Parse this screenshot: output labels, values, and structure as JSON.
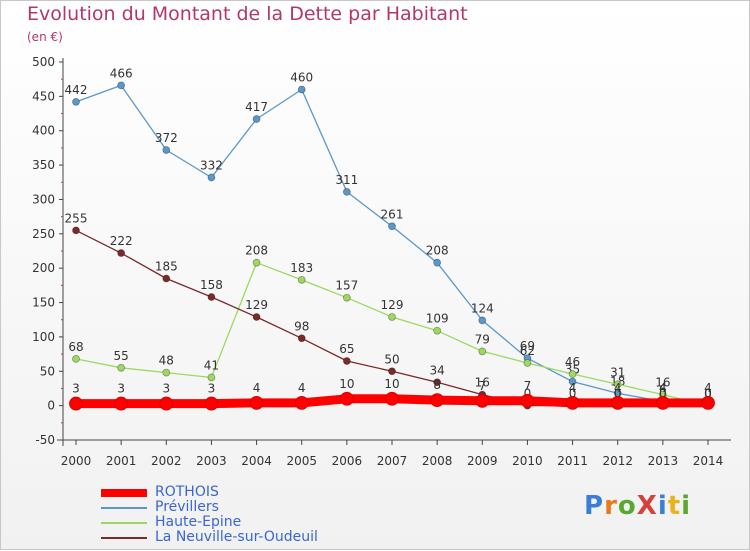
{
  "title": "Evolution du Montant de la Dette par Habitant",
  "subtitle": "(en €)",
  "logo": {
    "text": "ProXiti"
  },
  "chart_data": {
    "type": "line",
    "title": "Evolution du Montant de la Dette par Habitant",
    "ylabel": "(en €)",
    "x": [
      2000,
      2001,
      2002,
      2003,
      2004,
      2005,
      2006,
      2007,
      2008,
      2009,
      2010,
      2011,
      2012,
      2013,
      2014
    ],
    "ylim": [
      -50,
      500
    ],
    "yticks": [
      -50,
      0,
      50,
      100,
      150,
      200,
      250,
      300,
      350,
      400,
      450,
      500
    ],
    "grid": false,
    "legend_position": "bottom-left",
    "series": [
      {
        "name": "Prévillers",
        "color": "#5a98c9",
        "values": [
          442,
          466,
          372,
          332,
          417,
          460,
          311,
          261,
          208,
          124,
          69,
          35,
          18,
          6,
          0
        ],
        "labels": [
          "442",
          "466",
          "372",
          "332",
          "417",
          "460",
          "311",
          "261",
          "208",
          "124",
          "69",
          "35",
          "18",
          "6",
          "0"
        ]
      },
      {
        "name": "Haute-Epine",
        "color": "#9ed85e",
        "values": [
          68,
          55,
          48,
          41,
          208,
          183,
          157,
          129,
          109,
          79,
          62,
          46,
          31,
          16,
          0
        ],
        "labels": [
          "68",
          "55",
          "48",
          "41",
          "208",
          "183",
          "157",
          "129",
          "109",
          "79",
          "62",
          "46",
          "31",
          "16",
          "0"
        ]
      },
      {
        "name": "La Neuville-sur-Oudeuil",
        "color": "#7b2a2a",
        "values": [
          255,
          222,
          185,
          158,
          129,
          98,
          65,
          50,
          34,
          16,
          0,
          0,
          0,
          0,
          0
        ],
        "labels": [
          "255",
          "222",
          "185",
          "158",
          "129",
          "98",
          "65",
          "50",
          "34",
          "16",
          "0",
          "0",
          "0",
          "0",
          "0"
        ]
      },
      {
        "name": "ROTHOIS",
        "color": "#ff0000",
        "values": [
          3,
          3,
          3,
          3,
          4,
          4,
          10,
          10,
          8,
          7,
          7,
          4,
          4,
          4,
          4
        ],
        "labels": [
          "3",
          "3",
          "3",
          "3",
          "4",
          "4",
          "10",
          "10",
          "8",
          "7",
          "7",
          "4",
          "4",
          "4",
          "4"
        ]
      }
    ],
    "legend": [
      "ROTHOIS",
      "Prévillers",
      "Haute-Epine",
      "La Neuville-sur-Oudeuil"
    ]
  }
}
